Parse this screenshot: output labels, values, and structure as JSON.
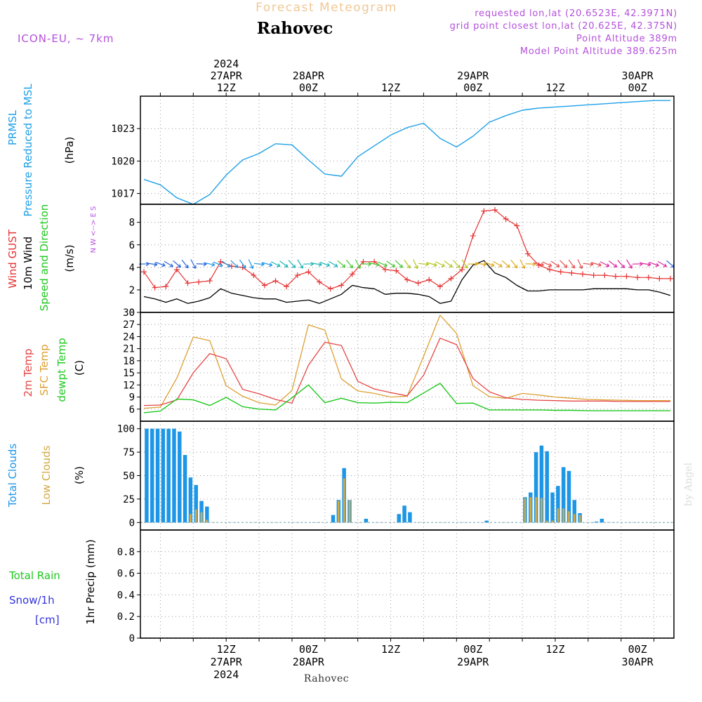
{
  "header": {
    "title": "Forecast Meteogram",
    "location": "Rahovec",
    "model": "ICON-EU, ~ 7km",
    "requested": "requested lon,lat (20.6523E, 42.3971N)",
    "grid_point": "grid point closest lon,lat (20.625E, 42.375N)",
    "point_altitude": "Point Altitude 389m",
    "model_altitude": "Model Point Altitude 389.625m",
    "footer_location": "Rahovec",
    "credit": "by Angel"
  },
  "colors": {
    "pressure": "#1ea0e6",
    "gust": "#e63232",
    "wind": "#000000",
    "temp2m": "#e64646",
    "sfc": "#dca032",
    "dewpt": "#1ec81e",
    "total_clouds": "#1e96e6",
    "low_clouds": "#d2aa46",
    "rain": "#1ec81e",
    "snow": "#3232dc",
    "header": "#b450dc",
    "title": "#f0c896",
    "wind_arrows": [
      "#2864dc",
      "#1e96e6",
      "#1eb4b4",
      "#46c832",
      "#b4c81e",
      "#dcaa1e",
      "#e65050",
      "#dc28a0"
    ]
  },
  "chart_data": [
    {
      "type": "line",
      "id": "pressure",
      "ylabel_lines": [
        "PRMSL",
        "Pressure Reduced to MSL"
      ],
      "unit": "(hPa)",
      "x_hours": [
        0,
        3,
        6,
        9,
        12,
        15,
        18,
        21,
        24,
        27,
        30,
        33,
        36,
        39,
        42,
        45,
        48,
        51,
        54,
        57,
        60,
        63,
        66,
        69,
        72,
        75,
        78,
        81,
        84,
        87,
        90,
        93,
        96
      ],
      "values": [
        1018.3,
        1017.8,
        1016.6,
        1016.0,
        1016.9,
        1018.7,
        1020.1,
        1020.7,
        1021.6,
        1021.5,
        1020.1,
        1018.8,
        1018.6,
        1020.4,
        1021.4,
        1022.4,
        1023.1,
        1023.5,
        1022.1,
        1021.3,
        1022.3,
        1023.6,
        1024.2,
        1024.7,
        1024.9,
        1025.0,
        1025.1,
        1025.2,
        1025.3,
        1025.4,
        1025.5,
        1025.6,
        1025.6
      ],
      "yticks": [
        1017,
        1020,
        1023
      ],
      "ylim": [
        1016,
        1026
      ]
    },
    {
      "type": "line",
      "id": "wind",
      "ylabel_lines": [
        "Wind GUST",
        "10m Wind",
        "Speed and Direction"
      ],
      "unit": "(m/s)",
      "compass": "N  W <--> E  S",
      "x_hours": [
        0,
        2,
        4,
        6,
        8,
        10,
        12,
        14,
        16,
        18,
        20,
        22,
        24,
        26,
        28,
        30,
        32,
        34,
        36,
        38,
        40,
        42,
        44,
        46,
        48,
        50,
        52,
        54,
        56,
        58,
        60,
        62,
        64,
        66,
        68,
        70,
        72,
        74,
        76,
        78,
        80,
        82,
        84,
        86,
        88,
        90,
        92,
        94,
        96
      ],
      "gust": [
        3.6,
        2.2,
        2.3,
        3.8,
        2.6,
        2.7,
        2.8,
        4.5,
        4.1,
        4.0,
        3.3,
        2.4,
        2.8,
        2.3,
        3.3,
        3.6,
        2.7,
        2.1,
        2.4,
        3.4,
        4.5,
        4.5,
        3.8,
        3.7,
        2.9,
        2.6,
        2.9,
        2.3,
        3.0,
        3.8,
        6.8,
        9.0,
        9.1,
        8.3,
        7.7,
        5.2,
        4.2,
        3.8,
        3.6,
        3.5,
        3.4,
        3.3,
        3.3,
        3.2,
        3.2,
        3.1,
        3.1,
        3.0,
        3.0
      ],
      "wind10m": [
        1.4,
        1.2,
        0.9,
        1.2,
        0.8,
        1.0,
        1.3,
        2.1,
        1.7,
        1.5,
        1.3,
        1.2,
        1.2,
        0.9,
        1.0,
        1.1,
        0.8,
        1.2,
        1.6,
        2.4,
        2.2,
        2.1,
        1.6,
        1.7,
        1.7,
        1.6,
        1.4,
        0.8,
        1.0,
        2.9,
        4.2,
        4.6,
        3.5,
        3.1,
        2.4,
        1.9,
        1.9,
        2.0,
        2.0,
        2.0,
        2.0,
        2.1,
        2.1,
        2.1,
        2.1,
        2.0,
        2.0,
        1.8,
        1.5
      ],
      "yticks": [
        0,
        2,
        4,
        6,
        8
      ],
      "ylim": [
        0,
        9.6
      ]
    },
    {
      "type": "line",
      "id": "temperature",
      "ylabel_lines": [
        "2m Temp",
        "SFC Temp",
        "dewpt Temp"
      ],
      "unit": "(C)",
      "x_hours": [
        0,
        3,
        6,
        9,
        12,
        15,
        18,
        21,
        24,
        27,
        30,
        33,
        36,
        39,
        42,
        45,
        48,
        51,
        54,
        57,
        60,
        63,
        66,
        69,
        72,
        75,
        78,
        81,
        84,
        87,
        90,
        93,
        96
      ],
      "temp2m": [
        6.9,
        7.0,
        8.3,
        15.0,
        19.8,
        18.5,
        10.9,
        9.8,
        8.4,
        7.5,
        16.9,
        22.6,
        21.8,
        12.9,
        11.0,
        10.1,
        9.3,
        14.4,
        23.6,
        22.0,
        13.6,
        10.3,
        8.8,
        8.4,
        8.2,
        8.1,
        8.0,
        8.0,
        8.0,
        7.9,
        7.9,
        7.9,
        7.9
      ],
      "sfc": [
        6.2,
        6.5,
        13.7,
        23.9,
        23.0,
        11.8,
        9.2,
        7.6,
        7.0,
        10.6,
        26.9,
        25.6,
        13.5,
        10.5,
        9.9,
        9.0,
        9.2,
        19.1,
        29.3,
        24.8,
        11.8,
        9.1,
        8.7,
        9.9,
        9.5,
        9.0,
        8.7,
        8.4,
        8.3,
        8.2,
        8.1,
        8.1,
        8.1
      ],
      "dewpt": [
        5.1,
        5.5,
        8.5,
        8.3,
        6.9,
        8.9,
        6.6,
        6.0,
        5.8,
        8.8,
        12.0,
        7.6,
        8.7,
        7.6,
        7.5,
        7.7,
        7.6,
        10.0,
        12.4,
        7.4,
        7.5,
        5.8,
        5.8,
        5.8,
        5.8,
        5.7,
        5.7,
        5.6,
        5.6,
        5.6,
        5.6,
        5.6,
        5.6
      ],
      "yticks": [
        6,
        9,
        12,
        15,
        18,
        21,
        24,
        27,
        30
      ],
      "ylim": [
        3,
        30
      ]
    },
    {
      "type": "bar",
      "id": "clouds",
      "ylabel_lines": [
        "Total Clouds",
        "Low Clouds"
      ],
      "unit": "(%)",
      "x_hours": [
        0,
        1,
        2,
        3,
        4,
        5,
        6,
        7,
        8,
        9,
        10,
        11,
        12,
        13,
        14,
        15,
        16,
        17,
        18,
        19,
        20,
        21,
        22,
        23,
        24,
        25,
        26,
        27,
        28,
        29,
        30,
        31,
        32,
        33,
        34,
        35,
        36,
        37,
        38,
        39,
        40,
        41,
        42,
        43,
        44,
        45,
        46,
        47,
        48,
        49,
        50,
        51,
        52,
        53,
        54,
        55,
        56,
        57,
        58,
        59,
        60,
        61,
        62,
        63,
        64,
        65,
        66,
        67,
        68,
        69,
        70,
        71,
        72,
        73,
        74,
        75,
        76,
        77,
        78,
        79,
        80,
        81,
        82,
        83,
        84,
        85,
        86,
        87,
        88,
        89,
        90,
        91,
        92,
        93,
        94,
        95
      ],
      "total": [
        100,
        100,
        100,
        100,
        100,
        100,
        97,
        72,
        48,
        40,
        23,
        17,
        0,
        0,
        0,
        0,
        0,
        0,
        0,
        0,
        0,
        0,
        0,
        0,
        0,
        0,
        0,
        0,
        0,
        0,
        0,
        0,
        0,
        0,
        8,
        24,
        58,
        24,
        0,
        0,
        4,
        0,
        0,
        0,
        0,
        0,
        9,
        18,
        11,
        0,
        0,
        0,
        0,
        0,
        0,
        0,
        0,
        0,
        0,
        0,
        0,
        0,
        2,
        0,
        0,
        0,
        0,
        0,
        0,
        27,
        32,
        75,
        82,
        76,
        32,
        39,
        59,
        55,
        24,
        10,
        0,
        0,
        1,
        4,
        0,
        0,
        0,
        0,
        0,
        0,
        0,
        0,
        0,
        0,
        0,
        0
      ],
      "low": [
        0,
        0,
        0,
        0,
        0,
        0,
        0,
        0,
        9,
        14,
        11,
        3,
        0,
        0,
        0,
        0,
        0,
        0,
        0,
        0,
        0,
        0,
        0,
        0,
        0,
        0,
        0,
        0,
        0,
        0,
        0,
        0,
        0,
        0,
        0,
        23,
        47,
        24,
        0,
        0,
        0,
        0,
        0,
        0,
        0,
        0,
        0,
        0,
        0,
        0,
        0,
        0,
        0,
        0,
        0,
        0,
        0,
        0,
        0,
        0,
        0,
        0,
        0,
        0,
        0,
        0,
        0,
        0,
        0,
        26,
        27,
        27,
        26,
        2,
        2,
        15,
        15,
        12,
        9,
        8,
        0,
        0,
        0,
        0,
        0,
        0,
        0,
        0,
        0,
        0,
        0,
        0,
        0,
        0,
        0,
        0
      ],
      "yticks": [
        0,
        25,
        50,
        75,
        100
      ],
      "ylim": [
        -8,
        108
      ]
    },
    {
      "type": "bar",
      "id": "precip",
      "ylabel_lines": [
        "Total  Rain",
        "Snow/1h",
        "[cm]"
      ],
      "unit": "1hr Precip (mm)",
      "x_hours": [
        0,
        96
      ],
      "values": [
        0,
        0
      ],
      "yticks": [
        0,
        0.2,
        0.4,
        0.6,
        0.8
      ],
      "ytick_labels": [
        "0",
        "0.2",
        "0.4",
        "0.6",
        "0.8"
      ],
      "ylim": [
        0,
        1.0
      ]
    }
  ],
  "time_axis": {
    "top_labels": [
      {
        "hour": 15,
        "lines": [
          "2024",
          "27APR",
          "12Z"
        ]
      },
      {
        "hour": 30,
        "lines": [
          "28APR",
          "00Z"
        ]
      },
      {
        "hour": 45,
        "lines": [
          "12Z"
        ]
      },
      {
        "hour": 60,
        "lines": [
          "29APR",
          "00Z"
        ]
      },
      {
        "hour": 75,
        "lines": [
          "12Z"
        ]
      },
      {
        "hour": 90,
        "lines": [
          "30APR",
          "00Z"
        ]
      }
    ],
    "bottom_labels": [
      {
        "hour": 15,
        "lines": [
          "12Z",
          "27APR",
          "2024"
        ]
      },
      {
        "hour": 30,
        "lines": [
          "00Z",
          "28APR"
        ]
      },
      {
        "hour": 45,
        "lines": [
          "12Z"
        ]
      },
      {
        "hour": 60,
        "lines": [
          "00Z",
          "29APR"
        ]
      },
      {
        "hour": 75,
        "lines": [
          "12Z"
        ]
      },
      {
        "hour": 90,
        "lines": [
          "00Z",
          "30APR"
        ]
      }
    ]
  }
}
